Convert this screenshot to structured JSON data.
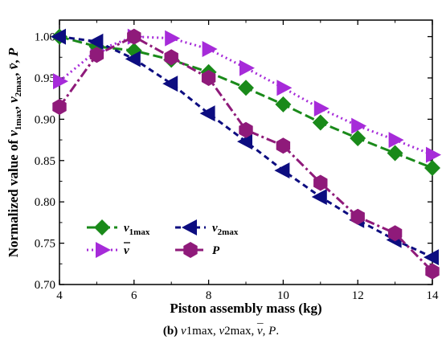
{
  "chart_data": {
    "type": "line",
    "xlabel": "Piston assembly mass (kg)",
    "ylabel": "Normalized value of v1max, v2max, v̄, P",
    "xlim": [
      4,
      14
    ],
    "ylim": [
      0.7,
      1.02
    ],
    "x_ticks": [
      4,
      6,
      8,
      10,
      12,
      14
    ],
    "y_ticks": [
      0.7,
      0.75,
      0.8,
      0.85,
      0.9,
      0.95,
      1.0
    ],
    "x_tick_labels": [
      "4",
      "6",
      "8",
      "10",
      "12",
      "14"
    ],
    "y_tick_labels": [
      "0.70",
      "0.75",
      "0.80",
      "0.85",
      "0.90",
      "0.95",
      "1.00"
    ],
    "x": [
      4,
      5,
      6,
      7,
      8,
      9,
      10,
      11,
      12,
      13,
      14
    ],
    "series": [
      {
        "key": "v1max",
        "color": "#1a8a1a",
        "marker": "diamond",
        "dash": "12,5",
        "values": [
          1.0,
          0.988,
          0.983,
          0.972,
          0.957,
          0.938,
          0.918,
          0.896,
          0.877,
          0.859,
          0.841
        ]
      },
      {
        "key": "v2max",
        "color": "#0d0d80",
        "marker": "triangle-left",
        "dash": "7,5",
        "values": [
          1.0,
          0.994,
          0.973,
          0.943,
          0.907,
          0.873,
          0.838,
          0.806,
          0.778,
          0.754,
          0.733
        ]
      },
      {
        "key": "vbar",
        "color": "#a62bd9",
        "marker": "triangle-right",
        "dash": "2,4",
        "values": [
          0.946,
          0.983,
          1.0,
          0.998,
          0.985,
          0.962,
          0.938,
          0.913,
          0.892,
          0.875,
          0.857
        ]
      },
      {
        "key": "P",
        "color": "#8f1a7a",
        "marker": "hexagon",
        "dash": "12,4,3,4",
        "values": [
          0.915,
          0.978,
          1.0,
          0.975,
          0.95,
          0.887,
          0.868,
          0.823,
          0.782,
          0.762,
          0.716
        ]
      }
    ],
    "legend": {
      "placement": "bottom-left",
      "items": [
        {
          "series": "v1max",
          "main": "v",
          "sub": "1max"
        },
        {
          "series": "v2max",
          "main": "v",
          "sub": "2max"
        },
        {
          "series": "vbar",
          "main": "v",
          "overline": true
        },
        {
          "series": "P",
          "main": "P"
        }
      ]
    }
  },
  "caption": {
    "label": "(b)",
    "v": "v",
    "sub1": "1max",
    "sub2": "2max",
    "sep": ", ",
    "vbar_bar": "¯",
    "P": "P",
    "end": "."
  }
}
